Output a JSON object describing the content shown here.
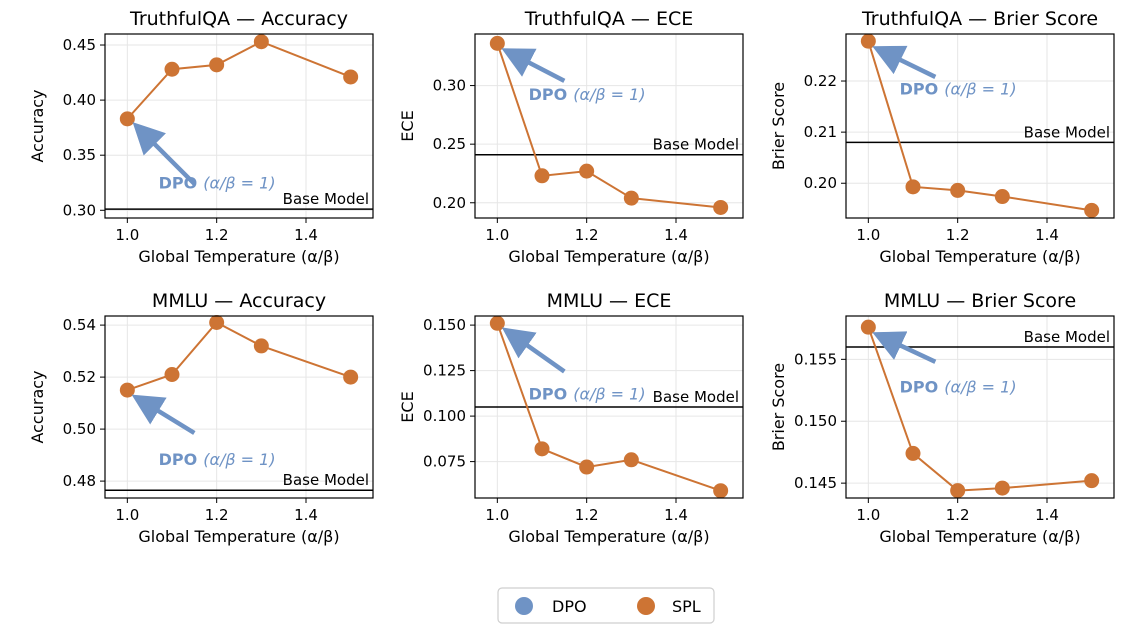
{
  "chart_data": [
    {
      "type": "line",
      "id": "tqa-acc",
      "title": "TruthfulQA — Accuracy",
      "xlabel": "Global Temperature (α/β)",
      "ylabel": "Accuracy",
      "x": [
        1.0,
        1.1,
        1.2,
        1.3,
        1.5
      ],
      "y": [
        0.383,
        0.428,
        0.432,
        0.453,
        0.421
      ],
      "xlim": [
        0.95,
        1.55
      ],
      "ylim": [
        0.293,
        0.46
      ],
      "xticks": [
        1.0,
        1.2,
        1.4
      ],
      "xtick_labels": [
        "1.0",
        "1.2",
        "1.4"
      ],
      "yticks": [
        0.3,
        0.35,
        0.4,
        0.45
      ],
      "ytick_labels": [
        "0.30",
        "0.35",
        "0.40",
        "0.45"
      ],
      "baseline": 0.301,
      "baseline_label": "Base Model",
      "baseline_label_pos": "above",
      "annotation_bold": "DPO",
      "annotation_math": "(α/β = 1)",
      "annotation_anchor": [
        1.15,
        0.324
      ],
      "annotation_text_at": [
        1.07,
        0.325
      ]
    },
    {
      "type": "line",
      "id": "tqa-ece",
      "title": "TruthfulQA — ECE",
      "xlabel": "Global Temperature (α/β)",
      "ylabel": "ECE",
      "x": [
        1.0,
        1.1,
        1.2,
        1.3,
        1.5
      ],
      "y": [
        0.336,
        0.223,
        0.227,
        0.204,
        0.196
      ],
      "xlim": [
        0.95,
        1.55
      ],
      "ylim": [
        0.187,
        0.344
      ],
      "xticks": [
        1.0,
        1.2,
        1.4
      ],
      "xtick_labels": [
        "1.0",
        "1.2",
        "1.4"
      ],
      "yticks": [
        0.2,
        0.25,
        0.3
      ],
      "ytick_labels": [
        "0.20",
        "0.25",
        "0.30"
      ],
      "baseline": 0.241,
      "baseline_label": "Base Model",
      "baseline_label_pos": "above",
      "annotation_bold": "DPO",
      "annotation_math": "(α/β = 1)",
      "annotation_anchor": [
        1.15,
        0.304
      ],
      "annotation_text_at": [
        1.07,
        0.293
      ]
    },
    {
      "type": "line",
      "id": "tqa-brier",
      "title": "TruthfulQA — Brier Score",
      "xlabel": "Global Temperature (α/β)",
      "ylabel": "Brier Score",
      "x": [
        1.0,
        1.1,
        1.2,
        1.3,
        1.5
      ],
      "y": [
        0.2278,
        0.1993,
        0.1986,
        0.1974,
        0.1947
      ],
      "xlim": [
        0.95,
        1.55
      ],
      "ylim": [
        0.1932,
        0.2292
      ],
      "xticks": [
        1.0,
        1.2,
        1.4
      ],
      "xtick_labels": [
        "1.0",
        "1.2",
        "1.4"
      ],
      "yticks": [
        0.2,
        0.21,
        0.22
      ],
      "ytick_labels": [
        "0.20",
        "0.21",
        "0.22"
      ],
      "baseline": 0.208,
      "baseline_label": "Base Model",
      "baseline_label_pos": "above",
      "annotation_bold": "DPO",
      "annotation_math": "(α/β = 1)",
      "annotation_anchor": [
        1.15,
        0.2208
      ],
      "annotation_text_at": [
        1.07,
        0.2185
      ]
    },
    {
      "type": "line",
      "id": "mmlu-acc",
      "title": "MMLU — Accuracy",
      "xlabel": "Global Temperature (α/β)",
      "ylabel": "Accuracy",
      "x": [
        1.0,
        1.1,
        1.2,
        1.3,
        1.5
      ],
      "y": [
        0.515,
        0.521,
        0.541,
        0.532,
        0.52
      ],
      "xlim": [
        0.95,
        1.55
      ],
      "ylim": [
        0.4735,
        0.5435
      ],
      "xticks": [
        1.0,
        1.2,
        1.4
      ],
      "xtick_labels": [
        "1.0",
        "1.2",
        "1.4"
      ],
      "yticks": [
        0.48,
        0.5,
        0.52,
        0.54
      ],
      "ytick_labels": [
        "0.48",
        "0.50",
        "0.52",
        "0.54"
      ],
      "baseline": 0.4765,
      "baseline_label": "Base Model",
      "baseline_label_pos": "above",
      "annotation_bold": "DPO",
      "annotation_math": "(α/β = 1)",
      "annotation_anchor": [
        1.15,
        0.4985
      ],
      "annotation_text_at": [
        1.07,
        0.4885
      ]
    },
    {
      "type": "line",
      "id": "mmlu-ece",
      "title": "MMLU — ECE",
      "xlabel": "Global Temperature (α/β)",
      "ylabel": "ECE",
      "x": [
        1.0,
        1.1,
        1.2,
        1.3,
        1.5
      ],
      "y": [
        0.151,
        0.082,
        0.072,
        0.076,
        0.059
      ],
      "xlim": [
        0.95,
        1.55
      ],
      "ylim": [
        0.055,
        0.155
      ],
      "xticks": [
        1.0,
        1.2,
        1.4
      ],
      "xtick_labels": [
        "1.0",
        "1.2",
        "1.4"
      ],
      "yticks": [
        0.075,
        0.1,
        0.125,
        0.15
      ],
      "ytick_labels": [
        "0.075",
        "0.100",
        "0.125",
        "0.150"
      ],
      "baseline": 0.105,
      "baseline_label": "Base Model",
      "baseline_label_pos": "above",
      "annotation_bold": "DPO",
      "annotation_math": "(α/β = 1)",
      "annotation_anchor": [
        1.15,
        0.1245
      ],
      "annotation_text_at": [
        1.07,
        0.1125
      ]
    },
    {
      "type": "line",
      "id": "mmlu-brier",
      "title": "MMLU — Brier Score",
      "xlabel": "Global Temperature (α/β)",
      "ylabel": "Brier Score",
      "x": [
        1.0,
        1.1,
        1.2,
        1.3,
        1.5
      ],
      "y": [
        0.1576,
        0.1474,
        0.1444,
        0.1446,
        0.1452
      ],
      "xlim": [
        0.95,
        1.55
      ],
      "ylim": [
        0.1438,
        0.1585
      ],
      "xticks": [
        1.0,
        1.2,
        1.4
      ],
      "xtick_labels": [
        "1.0",
        "1.2",
        "1.4"
      ],
      "yticks": [
        0.145,
        0.15,
        0.155
      ],
      "ytick_labels": [
        "0.145",
        "0.150",
        "0.155"
      ],
      "baseline": 0.156,
      "baseline_label": "Base Model",
      "baseline_label_pos": "above",
      "annotation_bold": "DPO",
      "annotation_math": "(α/β = 1)",
      "annotation_anchor": [
        1.15,
        0.1548
      ],
      "annotation_text_at": [
        1.07,
        0.1528
      ]
    }
  ],
  "legend": {
    "placement": "bottom-center",
    "items": [
      {
        "label": "DPO",
        "color": "#6f93c5"
      },
      {
        "label": "SPL",
        "color": "#cd7434"
      }
    ]
  },
  "colors": {
    "spl": "#cd7434",
    "dpo": "#6f93c5",
    "baseline": "#000000",
    "grid": "#e6e6e6"
  }
}
